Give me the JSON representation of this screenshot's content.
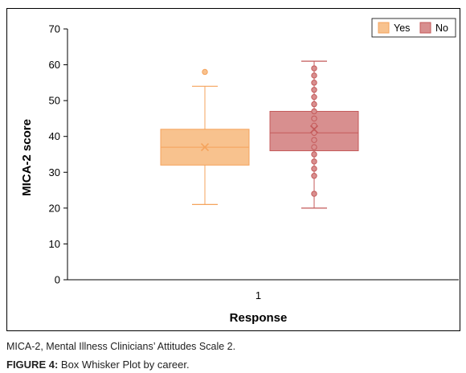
{
  "chart_data": {
    "type": "box",
    "xlabel": "Response",
    "ylabel": "MICA-2 score",
    "categories": [
      "1"
    ],
    "ylim": [
      0,
      70
    ],
    "yticks": [
      0,
      10,
      20,
      30,
      40,
      50,
      60,
      70
    ],
    "legend_position": "top-right",
    "grid": false,
    "series": [
      {
        "name": "Yes",
        "color": "#f8c28e",
        "edge_color": "#f5a35c",
        "min": 21,
        "q1": 32,
        "median": 37,
        "q3": 42,
        "max": 54,
        "mean": 37,
        "points": [
          58
        ]
      },
      {
        "name": "No",
        "color": "#d88f8f",
        "edge_color": "#c45a5a",
        "min": 20,
        "q1": 36,
        "median": 41,
        "q3": 47,
        "max": 61,
        "mean": 42,
        "points": [
          24,
          29,
          31,
          33,
          35,
          37,
          39,
          41,
          43,
          45,
          47,
          49,
          51,
          53,
          55,
          57,
          59
        ]
      }
    ]
  },
  "caption": {
    "note": "MICA-2, Mental Illness Clinicians’ Attitudes Scale 2.",
    "figure_label": "FIGURE 4:",
    "figure_text": " Box Whisker Plot by career."
  }
}
